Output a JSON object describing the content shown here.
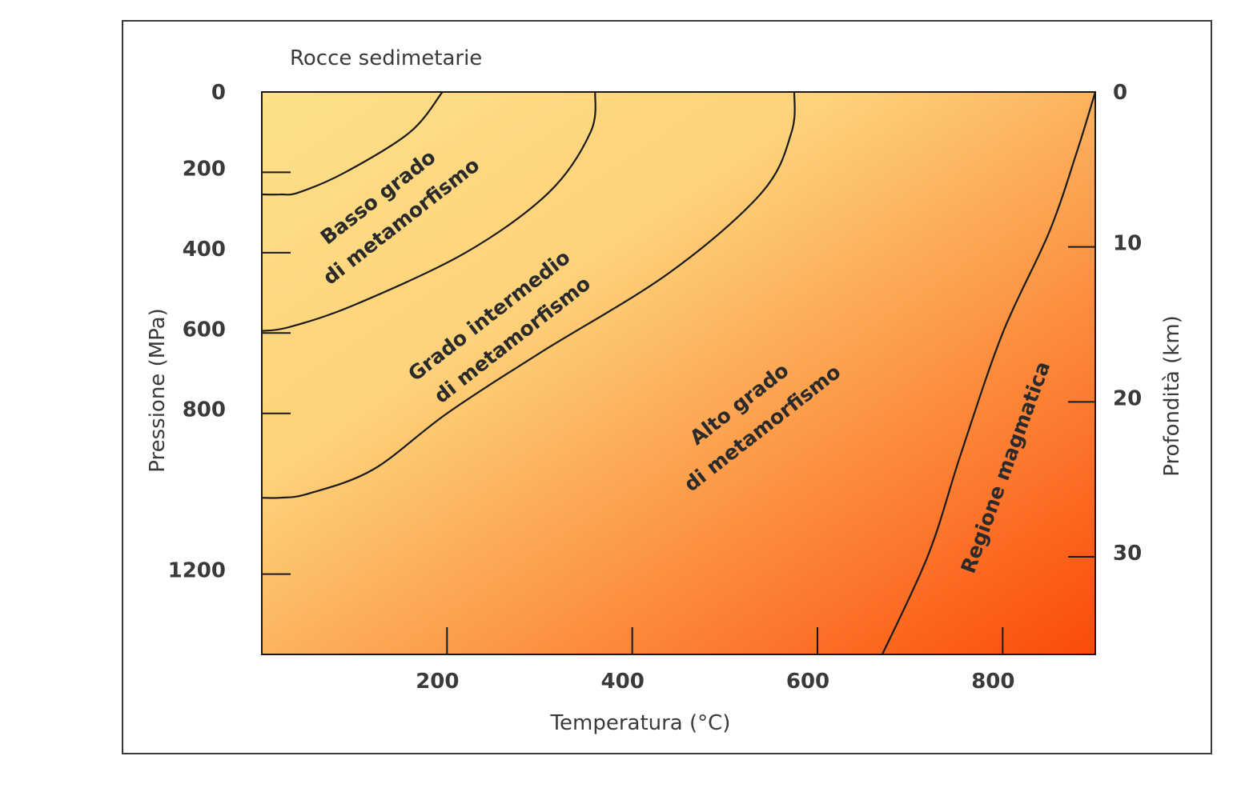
{
  "chart_data": {
    "type": "area",
    "title": "Rocce sedimetarie",
    "xlabel": "Temperatura (°C)",
    "ylabel": "Pressione (MPa)",
    "y2label": "Profondità (km)",
    "xlim": [
      0,
      900
    ],
    "ylim": [
      0,
      1400
    ],
    "y2lim": [
      0,
      36.3
    ],
    "y_inverted": true,
    "x_ticks": [
      200,
      400,
      600,
      800
    ],
    "y_ticks": [
      0,
      200,
      400,
      600,
      800,
      1200
    ],
    "y2_ticks": [
      0,
      10,
      20,
      30
    ],
    "grid": false,
    "background_gradient": {
      "from": "#fde08a",
      "to": "#fb4a0a",
      "direction": "top-left to bottom-right"
    },
    "boundaries": [
      {
        "id": "basso",
        "points": [
          [
            195,
            0
          ],
          [
            160,
            100
          ],
          [
            90,
            200
          ],
          [
            40,
            250
          ],
          [
            20,
            255
          ],
          [
            0,
            255
          ]
        ]
      },
      {
        "id": "intermedio",
        "points": [
          [
            360,
            0
          ],
          [
            355,
            100
          ],
          [
            310,
            250
          ],
          [
            220,
            400
          ],
          [
            100,
            530
          ],
          [
            30,
            585
          ],
          [
            0,
            595
          ]
        ]
      },
      {
        "id": "alto",
        "points": [
          [
            575,
            0
          ],
          [
            572,
            100
          ],
          [
            540,
            250
          ],
          [
            440,
            450
          ],
          [
            300,
            650
          ],
          [
            200,
            800
          ],
          [
            120,
            940
          ],
          [
            50,
            1000
          ],
          [
            20,
            1010
          ],
          [
            0,
            1010
          ]
        ]
      },
      {
        "id": "magmatica",
        "points": [
          [
            900,
            0
          ],
          [
            880,
            150
          ],
          [
            850,
            350
          ],
          [
            800,
            600
          ],
          [
            755,
            900
          ],
          [
            720,
            1150
          ],
          [
            670,
            1400
          ]
        ]
      }
    ],
    "region_labels": [
      {
        "text": "Basso grado",
        "x": 130,
        "y": 275,
        "angle": -38
      },
      {
        "text": "di metamorfismo",
        "x": 155,
        "y": 335,
        "angle": -38
      },
      {
        "text": "Grado intermedio",
        "x": 250,
        "y": 570,
        "angle": -38
      },
      {
        "text": "di metamorfismo",
        "x": 275,
        "y": 630,
        "angle": -38
      },
      {
        "text": "Alto grado",
        "x": 520,
        "y": 790,
        "angle": -38
      },
      {
        "text": "di metamorfismo",
        "x": 545,
        "y": 850,
        "angle": -38
      },
      {
        "text": "Regione magmatica",
        "x": 810,
        "y": 940,
        "angle": -70
      }
    ]
  }
}
